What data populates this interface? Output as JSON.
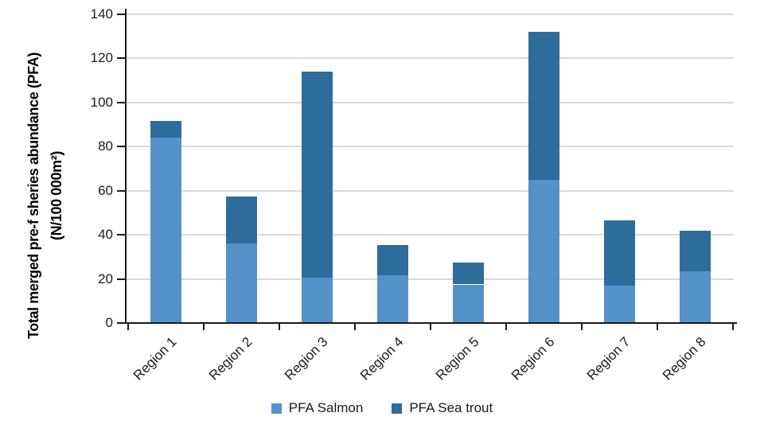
{
  "chart_data": {
    "type": "bar",
    "stacked": true,
    "categories": [
      "Region 1",
      "Region 2",
      "Region 3",
      "Region 4",
      "Region 5",
      "Region 6",
      "Region 7",
      "Region 8"
    ],
    "series": [
      {
        "name": "PFA Salmon",
        "color": "#5591C9",
        "values": [
          84,
          36,
          20.5,
          21.5,
          17.5,
          65,
          17,
          23.5
        ]
      },
      {
        "name": "PFA Sea trout",
        "color": "#2E6C9B",
        "values": [
          7.5,
          21.5,
          93.5,
          14,
          10,
          67,
          29.5,
          18.5
        ]
      }
    ],
    "ylabel_line1": "Total merged pre-f sheries abundance (PFA)",
    "ylabel_line2": "(N/100 000m²)",
    "xlabel": "",
    "title": "",
    "ylim": [
      0,
      140
    ],
    "yticks": [
      0,
      20,
      40,
      60,
      80,
      100,
      120,
      140
    ],
    "grid": "horizontal",
    "legend_position": "bottom",
    "colors": {
      "axis": "#1a1a1a",
      "gridline": "#d9d9d9",
      "background": "#ffffff"
    }
  }
}
